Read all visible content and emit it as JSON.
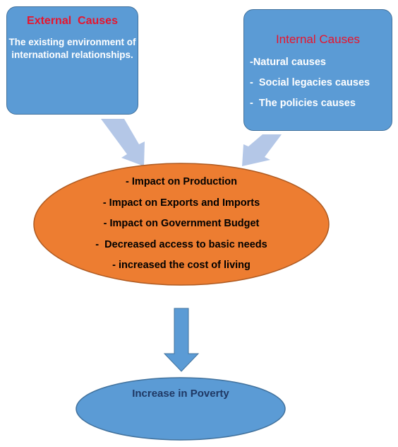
{
  "external": {
    "title": "External  Causes",
    "text": "The existing environment of international relationships."
  },
  "internal": {
    "title": "Internal Causes",
    "items": [
      "-Natural causes",
      "-  Social legacies causes",
      "-  The policies causes"
    ]
  },
  "impacts": {
    "items": [
      "- Impact on Production",
      "- Impact on Exports and Imports",
      "- Impact on Government Budget",
      "-  Decreased access to basic needs",
      "- increased the cost of living"
    ]
  },
  "outcome": {
    "label": "Increase in Poverty"
  },
  "colors": {
    "box_fill": "#5b9bd5",
    "box_border": "#41719c",
    "ellipse_fill": "#ed7d31",
    "title_red": "#e8142d",
    "side_arrow_fill": "#b4c7e7",
    "down_arrow_fill": "#5b9bd5",
    "outcome_text": "#1f3864"
  }
}
